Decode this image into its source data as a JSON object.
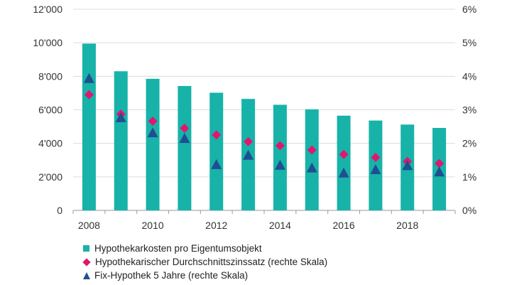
{
  "chart_data": {
    "type": "bar",
    "categories": [
      "2008",
      "2009",
      "2010",
      "2011",
      "2012",
      "2013",
      "2014",
      "2015",
      "2016",
      "2017",
      "2018",
      "2019"
    ],
    "x_tick_labels": [
      "2008",
      "2010",
      "2012",
      "2014",
      "2016",
      "2018"
    ],
    "ylim_left": [
      0,
      12000
    ],
    "ylim_right": [
      0,
      6
    ],
    "left_tick_labels": [
      "0",
      "2'000",
      "4'000",
      "6'000",
      "8'000",
      "10'000",
      "12'000"
    ],
    "right_tick_labels": [
      "0%",
      "1%",
      "2%",
      "3%",
      "4%",
      "5%",
      "6%"
    ],
    "grid": true,
    "legend_position": "bottom-left",
    "series": [
      {
        "name": "Hypothekarkosten pro Eigentumsobjekt",
        "kind": "bar",
        "axis": "left",
        "color": "#17b3a8",
        "values": [
          9950,
          8300,
          7850,
          7420,
          7020,
          6650,
          6300,
          6030,
          5650,
          5360,
          5120,
          4920
        ]
      },
      {
        "name": "Hypothekarischer Durchschnittszinssatz (rechte Skala)",
        "kind": "diamond",
        "axis": "right",
        "color": "#e0176f",
        "values": [
          3.45,
          2.87,
          2.66,
          2.45,
          2.25,
          2.05,
          1.93,
          1.8,
          1.67,
          1.58,
          1.46,
          1.4
        ]
      },
      {
        "name": "Fix-Hypothek 5 Jahre (rechte Skala)",
        "kind": "triangle",
        "axis": "right",
        "color": "#1f4f91",
        "values": [
          3.92,
          2.75,
          2.3,
          2.13,
          1.35,
          1.63,
          1.33,
          1.25,
          1.1,
          1.2,
          1.32,
          1.13
        ]
      }
    ]
  }
}
